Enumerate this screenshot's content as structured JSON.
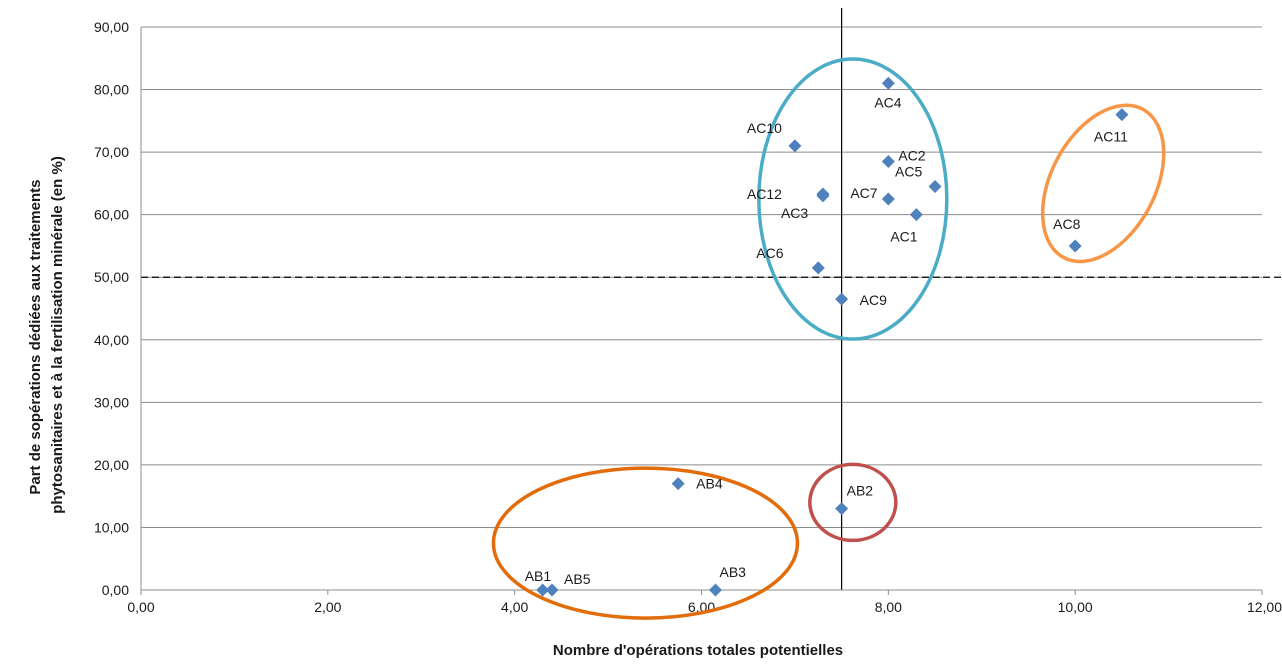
{
  "chart_data": {
    "type": "scatter",
    "xlabel": "Nombre d'opérations totales potentielles",
    "ylabel_lines": [
      "Part de sopérations dédiées aux traitements",
      "phytosanitaires et à la fertilisation minérale (en %)"
    ],
    "xlim": [
      0,
      12
    ],
    "ylim": [
      0,
      90
    ],
    "x_ticks": [
      "0,00",
      "2,00",
      "4,00",
      "6,00",
      "8,00",
      "10,00",
      "12,00"
    ],
    "y_ticks": [
      "0,00",
      "10,00",
      "20,00",
      "30,00",
      "40,00",
      "50,00",
      "60,00",
      "70,00",
      "80,00",
      "90,00"
    ],
    "grid": "horizontal",
    "marker_color": "#4f81bd",
    "points": [
      {
        "label": "AC4",
        "x": 8.0,
        "y": 81.0
      },
      {
        "label": "AC10",
        "x": 7.0,
        "y": 71.0
      },
      {
        "label": "AC2",
        "x": 8.0,
        "y": 68.5
      },
      {
        "label": "AC3",
        "x": 7.3,
        "y": 63.0
      },
      {
        "label": "AC5",
        "x": 8.5,
        "y": 64.5
      },
      {
        "label": "AC12",
        "x": 7.3,
        "y": 63.3
      },
      {
        "label": "AC7",
        "x": 8.0,
        "y": 62.5
      },
      {
        "label": "AC1",
        "x": 8.3,
        "y": 60.0
      },
      {
        "label": "AC6",
        "x": 7.25,
        "y": 51.5
      },
      {
        "label": "AC9",
        "x": 7.5,
        "y": 46.5
      },
      {
        "label": "AC11",
        "x": 10.5,
        "y": 76.0
      },
      {
        "label": "AC8",
        "x": 10.0,
        "y": 55.0
      },
      {
        "label": "AB4",
        "x": 5.75,
        "y": 17.0
      },
      {
        "label": "AB2",
        "x": 7.5,
        "y": 13.0
      },
      {
        "label": "AB1",
        "x": 4.3,
        "y": 0.0
      },
      {
        "label": "AB5",
        "x": 4.4,
        "y": 0.0
      },
      {
        "label": "AB3",
        "x": 6.15,
        "y": 0.0
      }
    ],
    "reference_lines": [
      {
        "orientation": "vertical",
        "value": 7.5,
        "style": "solid",
        "color": "#000000"
      },
      {
        "orientation": "horizontal",
        "value": 50,
        "style": "dashed",
        "color": "#000000"
      }
    ],
    "groups": [
      {
        "members": [
          "AC1",
          "AC2",
          "AC3",
          "AC4",
          "AC5",
          "AC6",
          "AC7",
          "AC9",
          "AC10",
          "AC12"
        ],
        "color": "#4bacc6"
      },
      {
        "members": [
          "AC8",
          "AC11"
        ],
        "color": "#f79646"
      },
      {
        "members": [
          "AB1",
          "AB3",
          "AB4",
          "AB5"
        ],
        "color": "#e36c0a"
      },
      {
        "members": [
          "AB2"
        ],
        "color": "#c0504d"
      }
    ]
  }
}
